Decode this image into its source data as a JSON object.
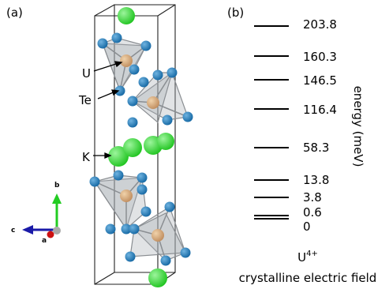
{
  "panel_a": {
    "label": "(a)",
    "atom_labels": [
      "U",
      "Te",
      "K"
    ],
    "axes": [
      "b",
      "c",
      "a"
    ]
  },
  "panel_b": {
    "label": "(b)",
    "levels": [
      "203.8",
      "160.3",
      "146.5",
      "116.4",
      "58.3",
      "13.8",
      "3.8",
      "0.6",
      "0"
    ],
    "axis_label": "energy (meV)",
    "ion": {
      "base": "U",
      "superscript": "4+"
    },
    "caption": "crystalline electric field"
  }
}
